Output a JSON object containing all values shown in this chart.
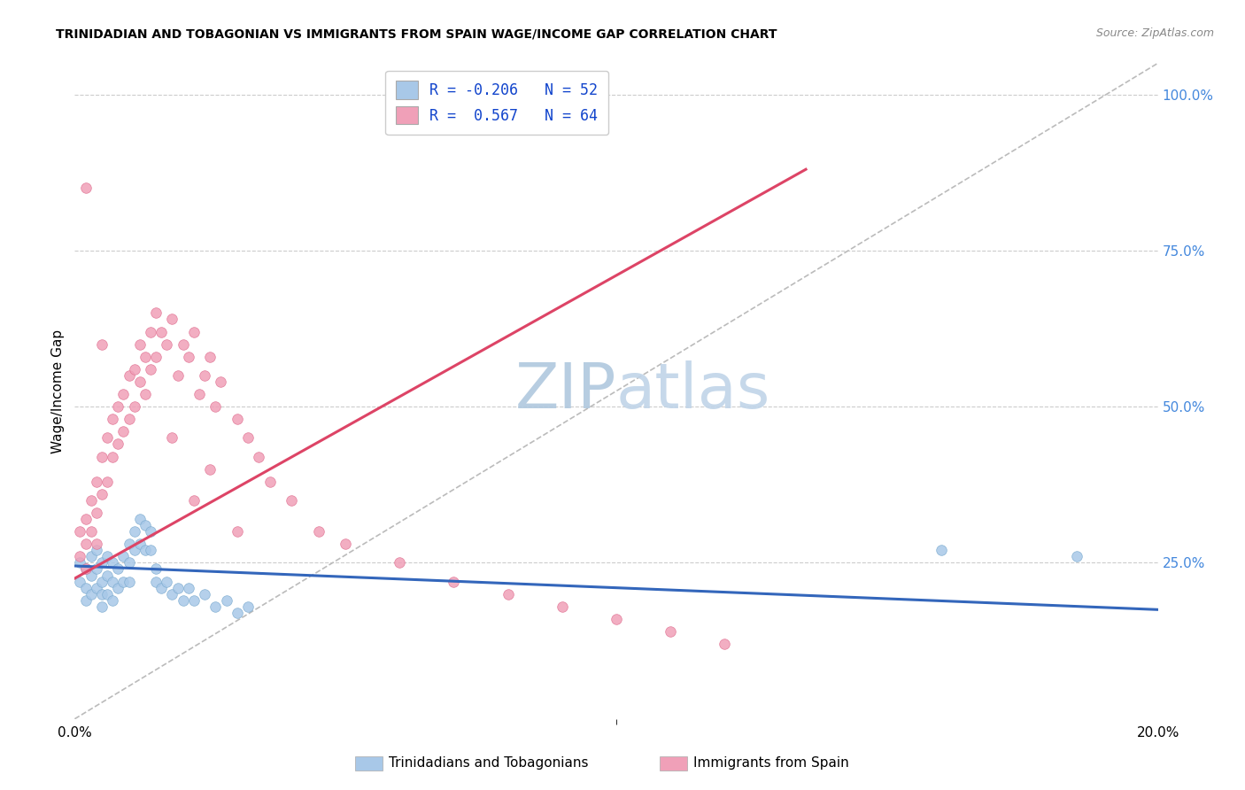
{
  "title": "TRINIDADIAN AND TOBAGONIAN VS IMMIGRANTS FROM SPAIN WAGE/INCOME GAP CORRELATION CHART",
  "source": "Source: ZipAtlas.com",
  "ylabel": "Wage/Income Gap",
  "ylabel_right_ticks": [
    "100.0%",
    "75.0%",
    "50.0%",
    "25.0%"
  ],
  "ylabel_right_vals": [
    1.0,
    0.75,
    0.5,
    0.25
  ],
  "legend_blue_r": "-0.206",
  "legend_blue_n": "52",
  "legend_pink_r": " 0.567",
  "legend_pink_n": "64",
  "blue_label": "Trinidadians and Tobagonians",
  "pink_label": "Immigrants from Spain",
  "background_color": "#ffffff",
  "grid_color": "#cccccc",
  "blue_color": "#a8c8e8",
  "pink_color": "#f0a0b8",
  "blue_scatter_edge": "#7aaacf",
  "pink_scatter_edge": "#e07090",
  "blue_line_color": "#3366bb",
  "pink_line_color": "#dd4466",
  "diagonal_color": "#bbbbbb",
  "watermark_zip_color": "#b8cfe0",
  "watermark_atlas_color": "#c8dce8",
  "xlim": [
    0.0,
    0.2
  ],
  "ylim": [
    0.0,
    1.05
  ],
  "blue_trend_x": [
    0.0,
    0.2
  ],
  "blue_trend_y": [
    0.245,
    0.175
  ],
  "pink_trend_x": [
    0.0,
    0.135
  ],
  "pink_trend_y": [
    0.225,
    0.88
  ],
  "blue_scatter_x": [
    0.001,
    0.001,
    0.002,
    0.002,
    0.002,
    0.003,
    0.003,
    0.003,
    0.004,
    0.004,
    0.004,
    0.005,
    0.005,
    0.005,
    0.005,
    0.006,
    0.006,
    0.006,
    0.007,
    0.007,
    0.007,
    0.008,
    0.008,
    0.009,
    0.009,
    0.01,
    0.01,
    0.01,
    0.011,
    0.011,
    0.012,
    0.012,
    0.013,
    0.013,
    0.014,
    0.014,
    0.015,
    0.015,
    0.016,
    0.017,
    0.018,
    0.019,
    0.02,
    0.021,
    0.022,
    0.024,
    0.026,
    0.028,
    0.03,
    0.032,
    0.16,
    0.185
  ],
  "blue_scatter_y": [
    0.25,
    0.22,
    0.24,
    0.21,
    0.19,
    0.26,
    0.23,
    0.2,
    0.27,
    0.24,
    0.21,
    0.25,
    0.22,
    0.2,
    0.18,
    0.26,
    0.23,
    0.2,
    0.25,
    0.22,
    0.19,
    0.24,
    0.21,
    0.26,
    0.22,
    0.28,
    0.25,
    0.22,
    0.3,
    0.27,
    0.32,
    0.28,
    0.31,
    0.27,
    0.3,
    0.27,
    0.24,
    0.22,
    0.21,
    0.22,
    0.2,
    0.21,
    0.19,
    0.21,
    0.19,
    0.2,
    0.18,
    0.19,
    0.17,
    0.18,
    0.27,
    0.26
  ],
  "pink_scatter_x": [
    0.001,
    0.001,
    0.002,
    0.002,
    0.002,
    0.003,
    0.003,
    0.004,
    0.004,
    0.004,
    0.005,
    0.005,
    0.006,
    0.006,
    0.007,
    0.007,
    0.008,
    0.008,
    0.009,
    0.009,
    0.01,
    0.01,
    0.011,
    0.011,
    0.012,
    0.012,
    0.013,
    0.013,
    0.014,
    0.014,
    0.015,
    0.015,
    0.016,
    0.017,
    0.018,
    0.019,
    0.02,
    0.021,
    0.022,
    0.023,
    0.024,
    0.025,
    0.026,
    0.027,
    0.03,
    0.032,
    0.034,
    0.036,
    0.04,
    0.045,
    0.05,
    0.06,
    0.07,
    0.08,
    0.09,
    0.1,
    0.11,
    0.12,
    0.002,
    0.025,
    0.005,
    0.03,
    0.018,
    0.022
  ],
  "pink_scatter_y": [
    0.3,
    0.26,
    0.32,
    0.28,
    0.24,
    0.35,
    0.3,
    0.38,
    0.33,
    0.28,
    0.42,
    0.36,
    0.45,
    0.38,
    0.48,
    0.42,
    0.5,
    0.44,
    0.52,
    0.46,
    0.55,
    0.48,
    0.56,
    0.5,
    0.6,
    0.54,
    0.58,
    0.52,
    0.62,
    0.56,
    0.65,
    0.58,
    0.62,
    0.6,
    0.64,
    0.55,
    0.6,
    0.58,
    0.62,
    0.52,
    0.55,
    0.58,
    0.5,
    0.54,
    0.48,
    0.45,
    0.42,
    0.38,
    0.35,
    0.3,
    0.28,
    0.25,
    0.22,
    0.2,
    0.18,
    0.16,
    0.14,
    0.12,
    0.85,
    0.4,
    0.6,
    0.3,
    0.45,
    0.35
  ]
}
